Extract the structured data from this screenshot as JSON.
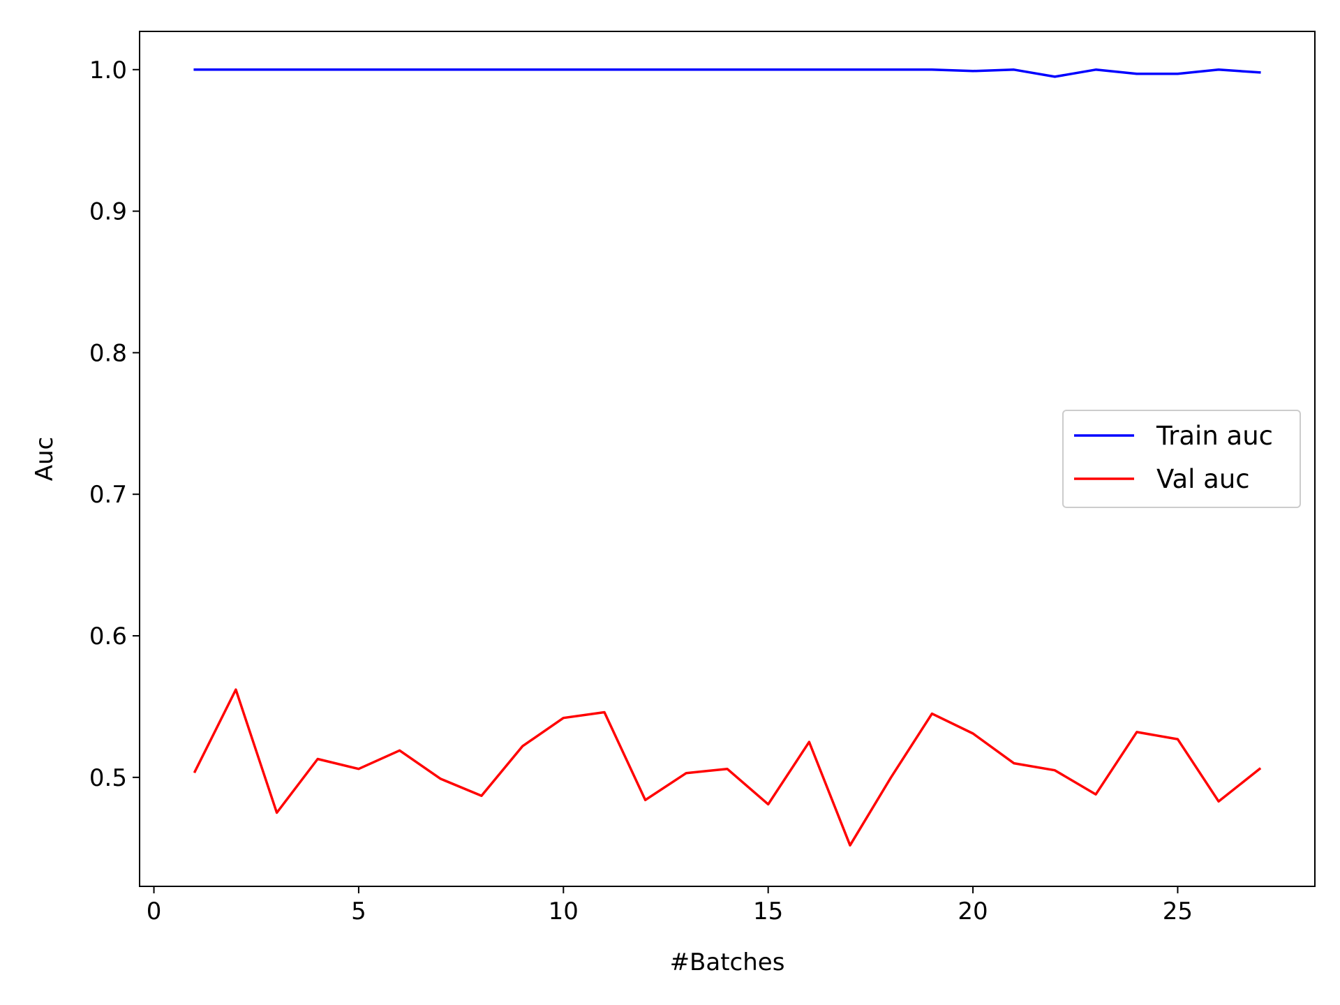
{
  "chart_data": {
    "type": "line",
    "title": "",
    "xlabel": "#Batches",
    "ylabel": "Auc",
    "xlim": [
      -0.35,
      28.35
    ],
    "ylim": [
      0.423,
      1.027
    ],
    "xticks": [
      0,
      5,
      10,
      15,
      20,
      25
    ],
    "xtick_labels": [
      "0",
      "5",
      "10",
      "15",
      "20",
      "25"
    ],
    "yticks": [
      0.5,
      0.6,
      0.7,
      0.8,
      0.9,
      1.0
    ],
    "ytick_labels": [
      "0.5",
      "0.6",
      "0.7",
      "0.8",
      "0.9",
      "1.0"
    ],
    "grid": false,
    "legend_position": "center-right",
    "x": [
      1,
      2,
      3,
      4,
      5,
      6,
      7,
      8,
      9,
      10,
      11,
      12,
      13,
      14,
      15,
      16,
      17,
      18,
      19,
      20,
      21,
      22,
      23,
      24,
      25,
      26,
      27
    ],
    "series": [
      {
        "name": "Train auc",
        "color": "#0000ff",
        "values": [
          1.0,
          1.0,
          1.0,
          1.0,
          1.0,
          1.0,
          1.0,
          1.0,
          1.0,
          1.0,
          1.0,
          1.0,
          1.0,
          1.0,
          1.0,
          1.0,
          1.0,
          1.0,
          1.0,
          0.999,
          1.0,
          0.995,
          1.0,
          0.997,
          0.997,
          1.0,
          0.998
        ]
      },
      {
        "name": "Val auc",
        "color": "#ff0000",
        "values": [
          0.504,
          0.562,
          0.475,
          0.513,
          0.506,
          0.519,
          0.499,
          0.487,
          0.522,
          0.542,
          0.546,
          0.484,
          0.503,
          0.506,
          0.481,
          0.525,
          0.452,
          0.5,
          0.545,
          0.531,
          0.51,
          0.505,
          0.488,
          0.532,
          0.527,
          0.483,
          0.506
        ]
      }
    ]
  }
}
